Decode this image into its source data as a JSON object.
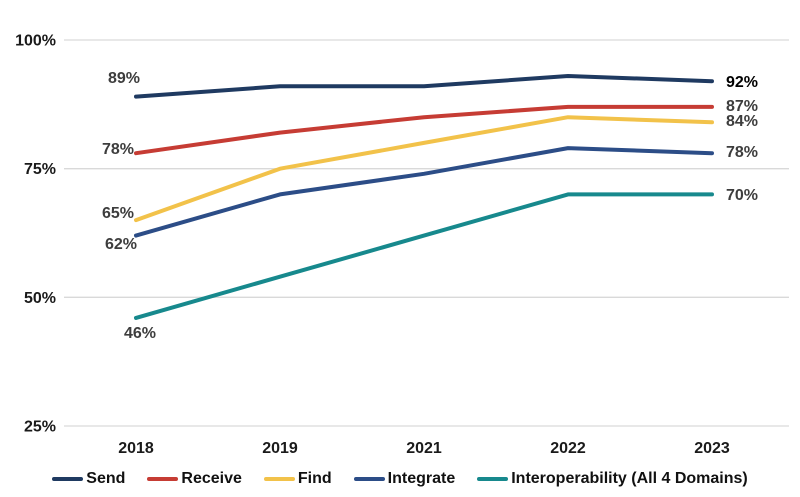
{
  "chart_data": {
    "type": "line",
    "x_labels": [
      "2018",
      "2019",
      "2021",
      "2022",
      "2023"
    ],
    "y_tick_labels": [
      "100%",
      "75%",
      "50%",
      "25%"
    ],
    "y_tick_values": [
      100,
      75,
      50,
      25
    ],
    "ylim": [
      25,
      100
    ],
    "grid": true,
    "legend_position": "bottom",
    "series": [
      {
        "name": "Send",
        "slug": "send",
        "color": "#1f3a61",
        "values": [
          89,
          91,
          91,
          93,
          92
        ],
        "first_label": "89%",
        "last_label": "92%"
      },
      {
        "name": "Receive",
        "slug": "receive",
        "color": "#c63c34",
        "values": [
          78,
          82,
          85,
          87,
          87
        ],
        "first_label": "78%",
        "last_label": "87%"
      },
      {
        "name": "Find",
        "slug": "find",
        "color": "#f2c24a",
        "values": [
          65,
          75,
          80,
          85,
          84
        ],
        "first_label": "65%",
        "last_label": "84%"
      },
      {
        "name": "Integrate",
        "slug": "integrate",
        "color": "#2c4d87",
        "values": [
          62,
          70,
          74,
          79,
          78
        ],
        "first_label": "62%",
        "last_label": "78%"
      },
      {
        "name": "Interoperability (All 4 Domains)",
        "slug": "interoperability",
        "color": "#17898d",
        "values": [
          46,
          54,
          62,
          70,
          70
        ],
        "first_label": "46%",
        "last_label": "70%"
      }
    ]
  },
  "colors": {
    "background": "#ffffff",
    "gridline": "#d9d9d9",
    "axis_text": "#1a1a1a",
    "data_label": "#3d3d3d",
    "send_end_label": "#000000"
  }
}
